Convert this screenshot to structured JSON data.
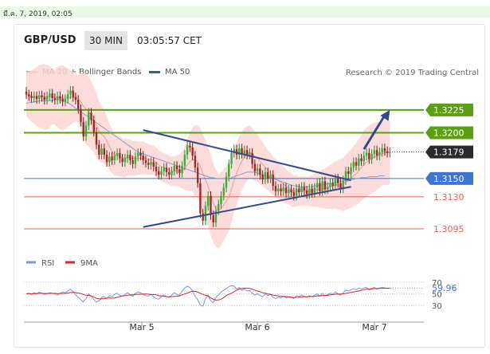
{
  "timestamp": "มี.ค. 7, 2019, 02:05",
  "header": {
    "pair": "GBP/USD",
    "timeframe": "30 MIN",
    "time": "03:05:57 CET"
  },
  "legend": {
    "ma20": {
      "label": "MA 20 + Bollinger Bands",
      "color": "#f39a93"
    },
    "ma50": {
      "label": "MA 50",
      "color": "#2a5ea8"
    }
  },
  "credit": "Research © 2019 Trading Central",
  "colors": {
    "green": "#5aa012",
    "blue": "#3e74d6",
    "red": "#e46155",
    "band": "#fbd6d3",
    "navy": "#37498e",
    "rsi": "#7f96d8",
    "ma9": "#d6262d"
  },
  "chart_data": {
    "type": "candlestick",
    "ylim": [
      1.3075,
      1.3258
    ],
    "x_labels": [
      "Mar 5",
      "Mar 6",
      "Mar 7"
    ],
    "levels": [
      {
        "value": 1.3225,
        "label": "1.3225",
        "kind": "resistance-green"
      },
      {
        "value": 1.32,
        "label": "1.3200",
        "kind": "resistance-green"
      },
      {
        "value": 1.3179,
        "label": "1.3179",
        "kind": "last-price"
      },
      {
        "value": 1.315,
        "label": "1.3150",
        "kind": "pivot-blue"
      },
      {
        "value": 1.313,
        "label": "1.3130",
        "kind": "support-red"
      },
      {
        "value": 1.3095,
        "label": "1.3095",
        "kind": "support-red"
      }
    ],
    "close": [
      1.3242,
      1.324,
      1.3238,
      1.324,
      1.3237,
      1.3241,
      1.3239,
      1.3236,
      1.324,
      1.3243,
      1.3238,
      1.3236,
      1.324,
      1.3237,
      1.3234,
      1.3237,
      1.3242,
      1.3246,
      1.3239,
      1.3236,
      1.3226,
      1.3212,
      1.3196,
      1.3208,
      1.3222,
      1.3214,
      1.3201,
      1.3187,
      1.3176,
      1.3183,
      1.3176,
      1.3168,
      1.3174,
      1.317,
      1.3175,
      1.3178,
      1.3172,
      1.3168,
      1.3172,
      1.3176,
      1.317,
      1.3166,
      1.3174,
      1.3178,
      1.3175,
      1.317,
      1.3167,
      1.3165,
      1.3168,
      1.3163,
      1.3158,
      1.3154,
      1.3158,
      1.3162,
      1.3157,
      1.3154,
      1.3158,
      1.3164,
      1.316,
      1.3156,
      1.3164,
      1.3176,
      1.3186,
      1.3184,
      1.3175,
      1.3162,
      1.3145,
      1.3112,
      1.3104,
      1.312,
      1.3131,
      1.311,
      1.3102,
      1.3115,
      1.3122,
      1.3131,
      1.314,
      1.3152,
      1.3166,
      1.3178,
      1.3182,
      1.3176,
      1.3183,
      1.3177,
      1.3181,
      1.3176,
      1.3178,
      1.3166,
      1.3158,
      1.3161,
      1.3154,
      1.3149,
      1.3157,
      1.315,
      1.3154,
      1.3142,
      1.3136,
      1.3139,
      1.3136,
      1.314,
      1.3134,
      1.3138,
      1.3135,
      1.3131,
      1.3139,
      1.3135,
      1.3141,
      1.3137,
      1.3133,
      1.3139,
      1.3134,
      1.314,
      1.3145,
      1.3136,
      1.3147,
      1.3138,
      1.3141,
      1.3145,
      1.3142,
      1.315,
      1.3145,
      1.3139,
      1.3148,
      1.3158,
      1.3155,
      1.3162,
      1.3168,
      1.3164,
      1.3172,
      1.3169,
      1.3175,
      1.3178,
      1.3171,
      1.3177,
      1.3181,
      1.3175,
      1.3179,
      1.3183,
      1.318,
      1.3178,
      1.3179
    ],
    "ma20_offset": 0.0004,
    "band_halfwidth": [
      0.0024,
      0.0026,
      0.0028,
      0.003,
      0.0032,
      0.0034,
      0.0035,
      0.0036,
      0.0035,
      0.0034,
      0.003,
      0.003,
      0.0033,
      0.0035,
      0.0036,
      0.0034,
      0.0032,
      0.003,
      0.0028,
      0.0026,
      0.0026,
      0.0032,
      0.0036,
      0.0038,
      0.0038,
      0.0037,
      0.0036,
      0.0035,
      0.0033,
      0.0031,
      0.0029,
      0.0027,
      0.0025,
      0.0024,
      0.0023,
      0.0022,
      0.0022,
      0.0021,
      0.0021,
      0.002,
      0.002,
      0.0019,
      0.0019,
      0.0018,
      0.0018,
      0.0018,
      0.0017,
      0.0017,
      0.0016,
      0.0016,
      0.0016,
      0.0016,
      0.0016,
      0.0016,
      0.0016,
      0.0016,
      0.0016,
      0.0016,
      0.0017,
      0.0018,
      0.002,
      0.0024,
      0.0028,
      0.0032,
      0.0035,
      0.0038,
      0.004,
      0.0042,
      0.0043,
      0.0044,
      0.0044,
      0.0044,
      0.0043,
      0.0042,
      0.0041,
      0.004,
      0.0039,
      0.0038,
      0.0037,
      0.0036,
      0.0035,
      0.0034,
      0.0033,
      0.0032,
      0.0031,
      0.003,
      0.0029,
      0.0028,
      0.0027,
      0.0026,
      0.0025,
      0.0024,
      0.0023,
      0.0022,
      0.0022,
      0.0021,
      0.0021,
      0.002,
      0.002,
      0.0019,
      0.0019,
      0.0018,
      0.0018,
      0.0017,
      0.0017,
      0.0016,
      0.0016,
      0.0016,
      0.0016,
      0.0016,
      0.0017,
      0.0018,
      0.0019,
      0.002,
      0.0021,
      0.0022,
      0.0023,
      0.0024,
      0.0025,
      0.0026,
      0.0027,
      0.0028,
      0.0029,
      0.003,
      0.0031,
      0.0032,
      0.0033,
      0.0034,
      0.0035,
      0.0036,
      0.0037,
      0.0038,
      0.0038,
      0.0038,
      0.0038,
      0.0037,
      0.0036,
      0.0035,
      0.0035,
      0.0035,
      0.0035
    ],
    "ma50": [
      1.3232,
      1.3233,
      1.3233,
      1.3234,
      1.3234,
      1.3235,
      1.3235,
      1.3235,
      1.3235,
      1.3235,
      1.3235,
      1.3236,
      1.3236,
      1.3236,
      1.3235,
      1.3234,
      1.3233,
      1.3231,
      1.3229,
      1.3227,
      1.3225,
      1.3223,
      1.3221,
      1.3219,
      1.3217,
      1.3215,
      1.3213,
      1.3211,
      1.3209,
      1.3207,
      1.3205,
      1.3203,
      1.3201,
      1.3199,
      1.3197,
      1.3195,
      1.3193,
      1.3191,
      1.3189,
      1.3187,
      1.3185,
      1.3183,
      1.3181,
      1.3179,
      1.3178,
      1.3177,
      1.3176,
      1.3175,
      1.3174,
      1.3173,
      1.3172,
      1.3171,
      1.317,
      1.3169,
      1.3168,
      1.3167,
      1.3166,
      1.3165,
      1.3164,
      1.3163,
      1.3162,
      1.3161,
      1.316,
      1.3159,
      1.3158,
      1.3157,
      1.3156,
      1.3155,
      1.3154,
      1.3153,
      1.3152,
      1.3151,
      1.3151,
      1.315,
      1.315,
      1.315,
      1.315,
      1.315,
      1.315,
      1.3151,
      1.3152,
      1.3153,
      1.3154,
      1.3155,
      1.3156,
      1.3157,
      1.3157,
      1.3157,
      1.3157,
      1.3156,
      1.3155,
      1.3154,
      1.3153,
      1.3152,
      1.3151,
      1.315,
      1.3149,
      1.3148,
      1.3147,
      1.3146,
      1.3145,
      1.3144,
      1.3143,
      1.3142,
      1.3142,
      1.3141,
      1.3141,
      1.3141,
      1.3141,
      1.3141,
      1.3141,
      1.3142,
      1.3142,
      1.3143,
      1.3143,
      1.3144,
      1.3144,
      1.3145,
      1.3145,
      1.3146,
      1.3146,
      1.3147,
      1.3147,
      1.3148,
      1.3148,
      1.3149,
      1.3149,
      1.315,
      1.315,
      1.3151,
      1.3151,
      1.3151,
      1.3152,
      1.3152,
      1.3152,
      1.3152,
      1.3153,
      1.3153,
      1.3153
    ],
    "triangle": {
      "upper": [
        [
          1.3203,
          45
        ],
        [
          1.3148,
          125
        ]
      ],
      "lower": [
        [
          1.3097,
          45
        ],
        [
          1.3141,
          125
        ]
      ]
    },
    "arrow": {
      "from": [
        1.3182,
        130
      ],
      "to": [
        1.3225,
        140
      ]
    },
    "rsi": {
      "label": "RSI",
      "ma_label": "9MA",
      "ticks": [
        70,
        50,
        30
      ],
      "ylim": [
        18,
        78
      ],
      "last": 59.96,
      "last_label": "59.96",
      "values": [
        50,
        51,
        49,
        52,
        50,
        53,
        51,
        49,
        50,
        52,
        51,
        50,
        48,
        51,
        53,
        52,
        55,
        58,
        54,
        48,
        44,
        40,
        36,
        42,
        50,
        46,
        40,
        36,
        38,
        44,
        45,
        42,
        47,
        45,
        49,
        51,
        47,
        46,
        49,
        52,
        48,
        46,
        51,
        53,
        52,
        49,
        47,
        46,
        49,
        45,
        42,
        41,
        45,
        48,
        45,
        44,
        48,
        52,
        49,
        47,
        55,
        60,
        63,
        61,
        55,
        46,
        40,
        31,
        29,
        42,
        48,
        38,
        35,
        44,
        48,
        53,
        56,
        59,
        62,
        64,
        63,
        58,
        61,
        56,
        58,
        55,
        56,
        51,
        48,
        50,
        47,
        45,
        50,
        47,
        49,
        44,
        42,
        44,
        43,
        46,
        43,
        45,
        44,
        42,
        47,
        45,
        48,
        46,
        44,
        47,
        45,
        48,
        50,
        46,
        51,
        47,
        49,
        51,
        50,
        53,
        50,
        48,
        52,
        56,
        55,
        57,
        59,
        57,
        60,
        58,
        60,
        61,
        57,
        59,
        61,
        58,
        60,
        61,
        60,
        59,
        60
      ]
    }
  }
}
